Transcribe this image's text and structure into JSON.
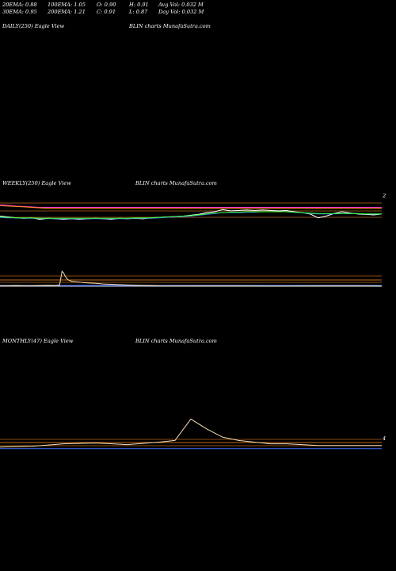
{
  "header": {
    "stats_row1": [
      {
        "id": "ema20",
        "text": "20EMA: 0.88"
      },
      {
        "id": "ema100",
        "text": "100EMA: 1.05"
      },
      {
        "id": "open",
        "text": "O: 0.90"
      },
      {
        "id": "high",
        "text": "H: 0.91"
      },
      {
        "id": "avgvol",
        "text": "Avg Vol: 0.032  M"
      }
    ],
    "stats_row2": [
      {
        "id": "ema30",
        "text": "30EMA: 0.95"
      },
      {
        "id": "ema200",
        "text": "200EMA: 1.21"
      },
      {
        "id": "close",
        "text": "C: 0.91"
      },
      {
        "id": "low",
        "text": "L: 0.87"
      },
      {
        "id": "dayvol",
        "text": "Day Vol: 0.032  M"
      }
    ]
  },
  "panels": {
    "daily": {
      "left_label": "DAILY(250) Eagle   View",
      "right_label": "BLIN  charts MunafaSutra.com"
    },
    "weekly": {
      "left_label": "WEEKLY(250) Eagle   View",
      "right_label": "BLIN  charts MunafaSutra.com",
      "axis_tick": "2"
    },
    "monthly": {
      "left_label": "MONTHLY(47) Eagle   View",
      "right_label": "BLIN  charts MunafaSutra.com",
      "axis_tick": "4"
    }
  },
  "colors": {
    "background": "#000000",
    "price": "#ffffff",
    "ema_blue": "#3b6cff",
    "ema_pink": "#ff33cc",
    "ema_orange": "#ff8c1a",
    "ema_brown": "#b5651d",
    "ema_green": "#33ff33",
    "volume": "#f5deb3"
  },
  "chart_data": [
    {
      "type": "line",
      "panel": "weekly-price",
      "x": [
        0,
        10,
        20,
        30,
        40,
        50,
        60,
        70,
        80,
        90,
        100,
        110,
        120,
        130,
        140,
        150,
        160,
        170,
        180,
        190,
        200,
        210,
        220,
        230,
        240,
        250,
        260,
        270,
        280,
        290,
        300,
        310,
        320,
        330,
        340,
        350,
        360,
        370,
        380,
        390,
        400,
        410,
        420,
        430,
        440,
        450,
        460,
        470,
        480
      ],
      "series": [
        {
          "name": "",
          "color": "#ffffff",
          "values": [
            50,
            48,
            46,
            45,
            46,
            43,
            45,
            44,
            43,
            44,
            43,
            44,
            45,
            44,
            43,
            45,
            44,
            45,
            44,
            46,
            47,
            48,
            49,
            50,
            52,
            54,
            58,
            60,
            65,
            62,
            63,
            64,
            63,
            64,
            63,
            62,
            63,
            60,
            58,
            55,
            46,
            50,
            56,
            60,
            57,
            55,
            54,
            53,
            55
          ]
        },
        {
          "name": "",
          "color": "#3b6cff",
          "values": [
            47,
            46,
            46,
            45,
            45,
            45,
            45,
            44,
            44,
            44,
            44,
            44,
            44,
            44,
            44,
            44,
            44,
            45,
            45,
            45,
            46,
            47,
            48,
            49,
            50,
            52,
            54,
            56,
            58,
            58,
            58,
            59,
            59,
            60,
            60,
            60,
            60,
            59,
            58,
            56,
            55,
            55,
            55,
            56,
            56,
            56,
            55,
            55,
            55
          ]
        },
        {
          "name": "",
          "color": "#ff33cc",
          "values": [
            76,
            75,
            73,
            72,
            71,
            70,
            70,
            70,
            70,
            70,
            70,
            70,
            70,
            70,
            70,
            70,
            70,
            70,
            70,
            70,
            70,
            70,
            70,
            70,
            70,
            70,
            70,
            70,
            70,
            70,
            70,
            70,
            70,
            70,
            70,
            70,
            70,
            70,
            70,
            70,
            70,
            70,
            70,
            70,
            70,
            70,
            70,
            70,
            70
          ]
        },
        {
          "name": "",
          "color": "#ff8c1a",
          "values": [
            74,
            73,
            72,
            71,
            70,
            69,
            68,
            68,
            68,
            68,
            68,
            68,
            68,
            68,
            68,
            68,
            68,
            68,
            68,
            68,
            68,
            68,
            68,
            68,
            68,
            68,
            68,
            68,
            68,
            68,
            68,
            68,
            68,
            68,
            68,
            68,
            68,
            68,
            68,
            68,
            68,
            68,
            68,
            68,
            68,
            68,
            68,
            68,
            68
          ]
        },
        {
          "name": "",
          "color": "#33ff33",
          "values": [
            48,
            47,
            46,
            46,
            46,
            45,
            45,
            45,
            45,
            45,
            45,
            45,
            45,
            45,
            45,
            45,
            45,
            46,
            46,
            46,
            47,
            48,
            49,
            50,
            51,
            53,
            55,
            57,
            58,
            59,
            59,
            60,
            60,
            60,
            60,
            60,
            60,
            59,
            58,
            57,
            56,
            56,
            56,
            56,
            56,
            56,
            55,
            55,
            55
          ]
        }
      ]
    },
    {
      "type": "area",
      "panel": "weekly-volume",
      "x": [
        0,
        10,
        20,
        30,
        40,
        50,
        60,
        70,
        75,
        78,
        80,
        82,
        85,
        90,
        100,
        110,
        120,
        130,
        140,
        150,
        160,
        170,
        180,
        190,
        200,
        250,
        300,
        350,
        400,
        450,
        480
      ],
      "values": [
        4,
        4,
        5,
        4,
        4,
        5,
        6,
        5,
        8,
        90,
        80,
        60,
        40,
        30,
        25,
        20,
        18,
        14,
        12,
        10,
        8,
        7,
        6,
        5,
        4,
        3,
        3,
        2,
        3,
        3,
        2
      ]
    },
    {
      "type": "line",
      "panel": "monthly-price",
      "x": [
        0,
        4,
        8,
        12,
        16,
        20,
        22,
        24,
        26,
        28,
        30,
        32,
        34,
        36,
        38,
        40,
        42,
        44,
        46,
        48
      ],
      "series": [
        {
          "name": "",
          "color": "#f5deb3",
          "values": [
            6,
            7,
            10,
            11,
            9,
            12,
            14,
            40,
            28,
            18,
            14,
            12,
            10,
            10,
            9,
            8,
            8,
            8,
            8,
            8
          ],
          "note_color_only": true
        },
        {
          "name": "",
          "color": "#3b6cff",
          "values": [
            4,
            4,
            4,
            4,
            4,
            4,
            4,
            4,
            4,
            4,
            4,
            4,
            4,
            4,
            4,
            4,
            4,
            4,
            4,
            4
          ]
        }
      ]
    }
  ]
}
